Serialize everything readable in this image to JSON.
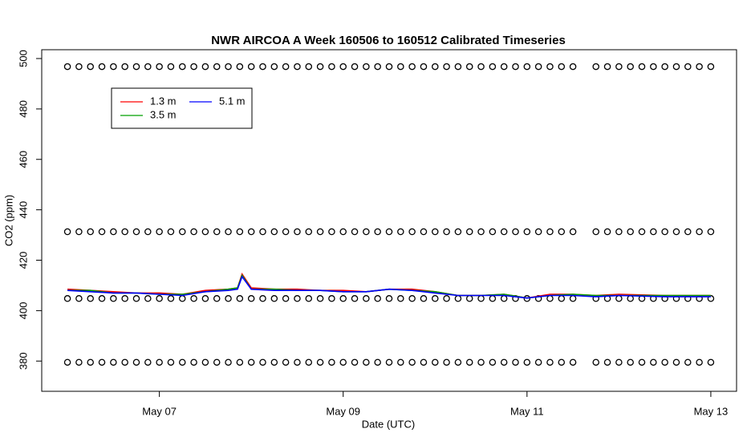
{
  "chart_data": {
    "type": "line",
    "title": "NWR AIRCOA A  Week 160506 to 160512  Calibrated Timeseries",
    "x_label": "Date (UTC)",
    "y_label": "CO2 (ppm)",
    "xlim": [
      5.72,
      13.28
    ],
    "ylim": [
      368,
      503.5
    ],
    "xticks": [
      {
        "value": 7,
        "label": "May 07"
      },
      {
        "value": 9,
        "label": "May 09"
      },
      {
        "value": 11,
        "label": "May 11"
      },
      {
        "value": 13,
        "label": "May 13"
      }
    ],
    "yticks": [
      380,
      400,
      420,
      440,
      460,
      480,
      500
    ],
    "x": [
      6,
      6.25,
      6.5,
      6.75,
      7,
      7.25,
      7.5,
      7.75,
      7.85,
      7.9,
      8,
      8.25,
      8.5,
      8.75,
      9,
      9.25,
      9.5,
      9.75,
      10,
      10.25,
      10.5,
      10.75,
      11,
      11.25,
      11.5,
      11.75,
      12,
      12.5,
      13
    ],
    "series": [
      {
        "name": "1.3 m",
        "color": "#ff0000",
        "values": [
          408.5,
          408,
          407.5,
          407,
          407,
          406.5,
          408,
          408.5,
          409,
          414.5,
          409,
          408.5,
          408.5,
          408,
          408,
          407.5,
          408.5,
          408.5,
          407.5,
          406,
          406,
          406.5,
          405,
          406.5,
          406.5,
          406,
          406.5,
          406,
          406
        ]
      },
      {
        "name": "3.5 m",
        "color": "#00a000",
        "values": [
          408,
          408,
          407,
          407,
          406.5,
          406.5,
          407.5,
          408.5,
          409,
          414,
          408.5,
          408.5,
          408,
          408,
          407.5,
          407.5,
          408.5,
          408,
          407.5,
          406,
          406,
          406.5,
          405,
          406,
          406.5,
          406,
          406,
          406,
          406
        ]
      },
      {
        "name": "5.1 m",
        "color": "#0000ff",
        "values": [
          408,
          407.5,
          407,
          407,
          406.5,
          406,
          407.5,
          408,
          408.5,
          413.5,
          408.5,
          408,
          408,
          408,
          407.5,
          407.5,
          408.5,
          408,
          407,
          406,
          406,
          406,
          405,
          406,
          406,
          405.5,
          406,
          405.5,
          405.5
        ]
      }
    ],
    "calibration": {
      "levels": [
        379.5,
        404.8,
        431.3,
        496.8
      ],
      "x": [
        6,
        6.125,
        6.25,
        6.375,
        6.5,
        6.625,
        6.75,
        6.875,
        7,
        7.125,
        7.25,
        7.375,
        7.5,
        7.625,
        7.75,
        7.875,
        8,
        8.125,
        8.25,
        8.375,
        8.5,
        8.625,
        8.75,
        8.875,
        9,
        9.125,
        9.25,
        9.375,
        9.5,
        9.625,
        9.75,
        9.875,
        10,
        10.125,
        10.25,
        10.375,
        10.5,
        10.625,
        10.75,
        10.875,
        11,
        11.125,
        11.25,
        11.375,
        11.5,
        11.75,
        11.875,
        12,
        12.125,
        12.25,
        12.375,
        12.5,
        12.625,
        12.75,
        12.875,
        13
      ]
    }
  }
}
